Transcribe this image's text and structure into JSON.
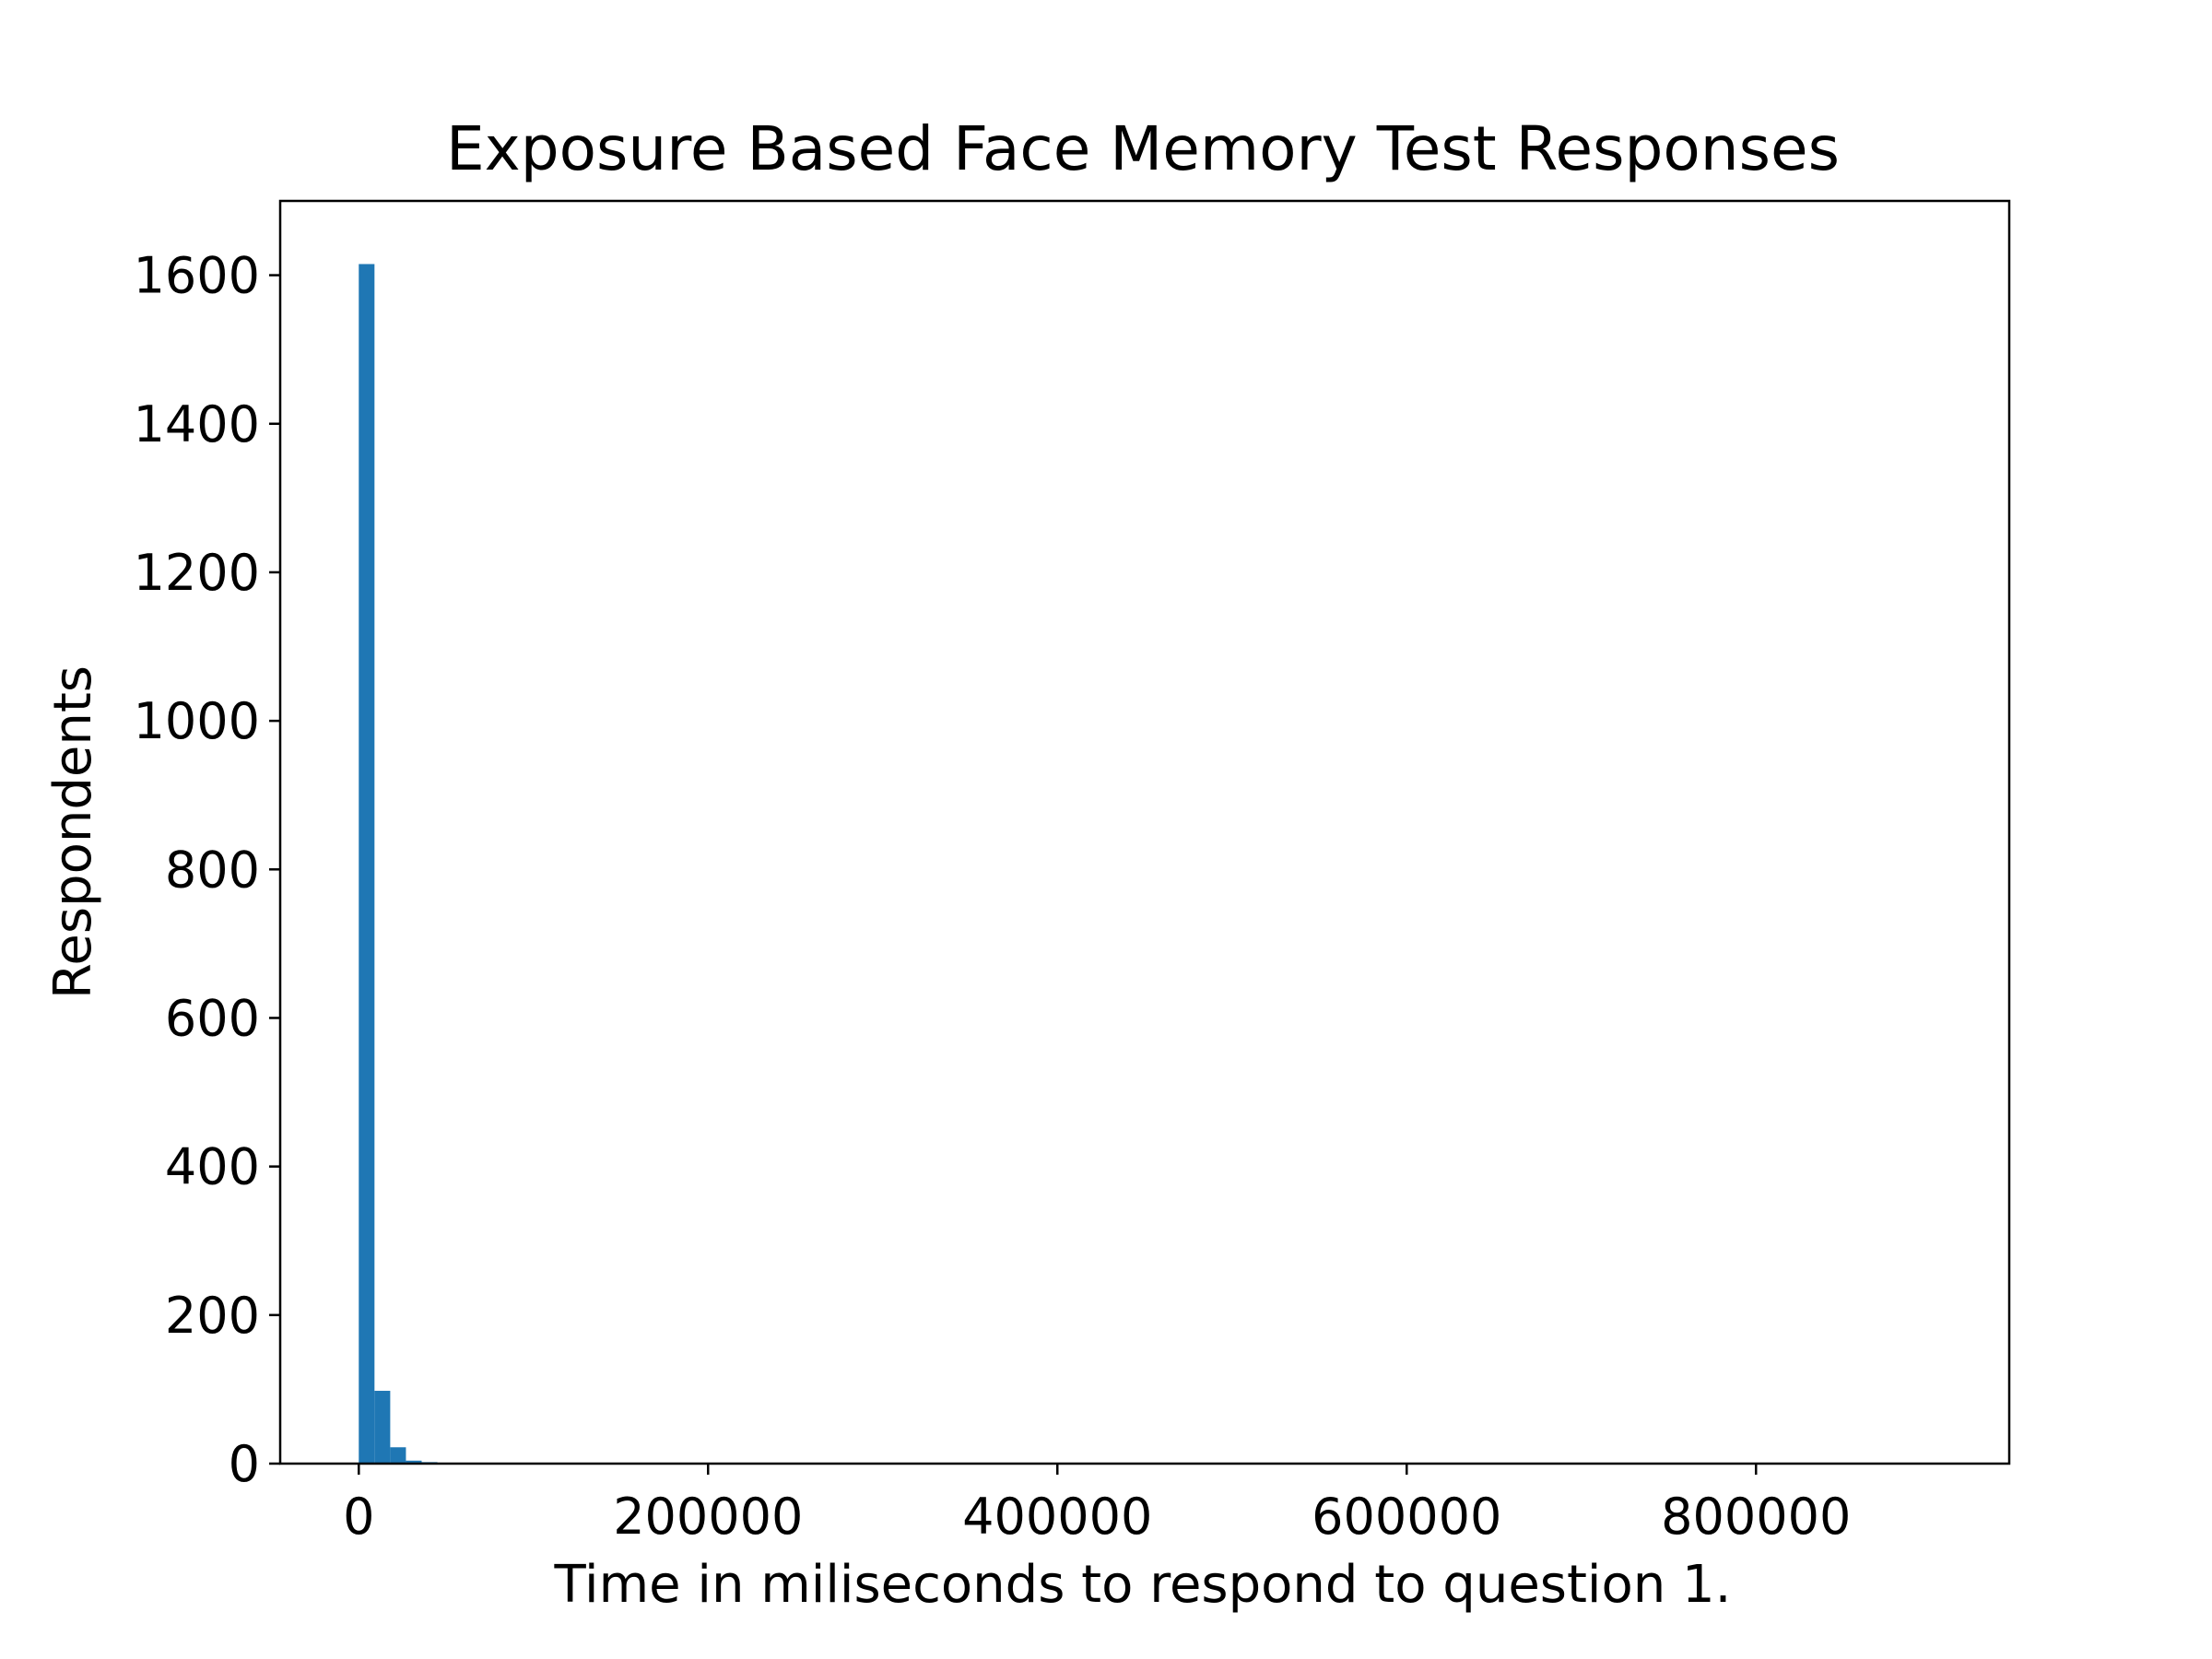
{
  "chart_data": {
    "type": "bar",
    "title": "Exposure Based Face Memory Test Responses",
    "xlabel": "Time in miliseconds to respond to question 1.",
    "ylabel": "Respondents",
    "xlim": [
      -45000,
      945000
    ],
    "ylim": [
      0,
      1700
    ],
    "bin_width": 9000,
    "bin_starts": [
      0,
      9000,
      18000,
      27000,
      36000,
      45000,
      54000,
      108000,
      306000
    ],
    "values": [
      1615,
      98,
      22,
      4,
      2,
      1,
      1,
      1,
      1
    ],
    "x_ticks": [
      0,
      200000,
      400000,
      600000,
      800000
    ],
    "x_tick_labels": [
      "0",
      "200000",
      "400000",
      "600000",
      "800000"
    ],
    "y_ticks": [
      0,
      200,
      400,
      600,
      800,
      1000,
      1200,
      1400,
      1600
    ],
    "y_tick_labels": [
      "0",
      "200",
      "400",
      "600",
      "800",
      "1000",
      "1200",
      "1400",
      "1600"
    ],
    "bar_color": "#1f77b4",
    "grid": false,
    "legend": "none"
  }
}
